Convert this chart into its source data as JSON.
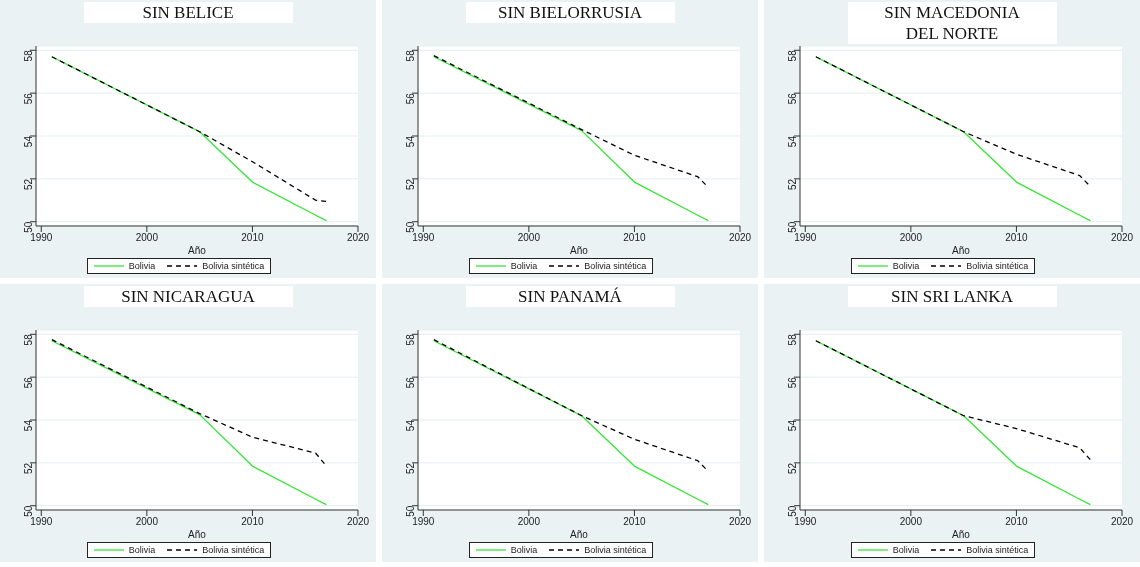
{
  "chart_data": [
    {
      "type": "line",
      "title": "SIN BELICE",
      "xlabel": "Año",
      "x": [
        1991,
        2005,
        2010,
        2016,
        2017
      ],
      "xlim": [
        1989.5,
        2020
      ],
      "xticks": [
        1990,
        2000,
        2010,
        2020
      ],
      "ylim": [
        49.8,
        58.2
      ],
      "yticks": [
        50,
        52,
        54,
        56,
        58
      ],
      "grid": "y",
      "legend": "bottom",
      "marker": "none",
      "series": [
        {
          "name": "Bolivia",
          "color": "#33e633",
          "line_style": "solid",
          "values": [
            57.7,
            54.2,
            51.85,
            50.3,
            50.05
          ]
        },
        {
          "name": "Bolivia sintética",
          "color": "#000000",
          "line_style": "dashed",
          "values": [
            57.7,
            54.2,
            52.8,
            51.0,
            50.95
          ]
        }
      ]
    },
    {
      "type": "line",
      "title": "SIN BIELORRUSIA",
      "xlabel": "Año",
      "x": [
        1991,
        2005,
        2010,
        2016,
        2017
      ],
      "xlim": [
        1989.5,
        2020
      ],
      "xticks": [
        1990,
        2000,
        2010,
        2020
      ],
      "ylim": [
        49.8,
        58.2
      ],
      "yticks": [
        50,
        52,
        54,
        56,
        58
      ],
      "grid": "y",
      "legend": "bottom",
      "marker": "none",
      "series": [
        {
          "name": "Bolivia",
          "color": "#33e633",
          "line_style": "solid",
          "values": [
            57.7,
            54.25,
            51.85,
            50.3,
            50.05
          ]
        },
        {
          "name": "Bolivia sintética",
          "color": "#000000",
          "line_style": "dashed",
          "values": [
            57.75,
            54.3,
            53.1,
            52.1,
            51.6
          ]
        }
      ]
    },
    {
      "type": "line",
      "title": "SIN MACEDONIA DEL NORTE",
      "xlabel": "Año",
      "x": [
        1991,
        2005,
        2010,
        2016,
        2017
      ],
      "xlim": [
        1989.5,
        2020
      ],
      "xticks": [
        1990,
        2000,
        2010,
        2020
      ],
      "ylim": [
        49.8,
        58.2
      ],
      "yticks": [
        50,
        52,
        54,
        56,
        58
      ],
      "grid": "y",
      "legend": "bottom",
      "marker": "none",
      "series": [
        {
          "name": "Bolivia",
          "color": "#33e633",
          "line_style": "solid",
          "values": [
            57.7,
            54.2,
            51.85,
            50.3,
            50.05
          ]
        },
        {
          "name": "Bolivia sintética",
          "color": "#000000",
          "line_style": "dashed",
          "values": [
            57.7,
            54.2,
            53.15,
            52.15,
            51.65
          ]
        }
      ]
    },
    {
      "type": "line",
      "title": "SIN NICARAGUA",
      "xlabel": "Año",
      "x": [
        1991,
        2005,
        2010,
        2016,
        2017
      ],
      "xlim": [
        1989.5,
        2020
      ],
      "xticks": [
        1990,
        2000,
        2010,
        2020
      ],
      "ylim": [
        49.8,
        58.2
      ],
      "yticks": [
        50,
        52,
        54,
        56,
        58
      ],
      "grid": "y",
      "legend": "bottom",
      "marker": "none",
      "series": [
        {
          "name": "Bolivia",
          "color": "#33e633",
          "line_style": "solid",
          "values": [
            57.7,
            54.25,
            51.85,
            50.3,
            50.05
          ]
        },
        {
          "name": "Bolivia sintética",
          "color": "#000000",
          "line_style": "dashed",
          "values": [
            57.75,
            54.3,
            53.2,
            52.45,
            51.85
          ]
        }
      ]
    },
    {
      "type": "line",
      "title": "SIN PANAMÁ",
      "xlabel": "Año",
      "x": [
        1991,
        2005,
        2010,
        2016,
        2017
      ],
      "xlim": [
        1989.5,
        2020
      ],
      "xticks": [
        1990,
        2000,
        2010,
        2020
      ],
      "ylim": [
        49.8,
        58.2
      ],
      "yticks": [
        50,
        52,
        54,
        56,
        58
      ],
      "grid": "y",
      "legend": "bottom",
      "marker": "none",
      "series": [
        {
          "name": "Bolivia",
          "color": "#33e633",
          "line_style": "solid",
          "values": [
            57.7,
            54.2,
            51.85,
            50.3,
            50.05
          ]
        },
        {
          "name": "Bolivia sintética",
          "color": "#000000",
          "line_style": "dashed",
          "values": [
            57.75,
            54.2,
            53.1,
            52.1,
            51.6
          ]
        }
      ]
    },
    {
      "type": "line",
      "title": "SIN SRI LANKA",
      "xlabel": "Año",
      "x": [
        1991,
        2005,
        2010,
        2016,
        2017
      ],
      "xlim": [
        1989.5,
        2020
      ],
      "xticks": [
        1990,
        2000,
        2010,
        2020
      ],
      "ylim": [
        49.8,
        58.2
      ],
      "yticks": [
        50,
        52,
        54,
        56,
        58
      ],
      "grid": "y",
      "legend": "bottom",
      "marker": "none",
      "series": [
        {
          "name": "Bolivia",
          "color": "#33e633",
          "line_style": "solid",
          "values": [
            57.7,
            54.2,
            51.85,
            50.3,
            50.05
          ]
        },
        {
          "name": "Bolivia sintética",
          "color": "#000000",
          "line_style": "dashed",
          "values": [
            57.7,
            54.2,
            53.6,
            52.7,
            52.15
          ]
        }
      ]
    }
  ]
}
